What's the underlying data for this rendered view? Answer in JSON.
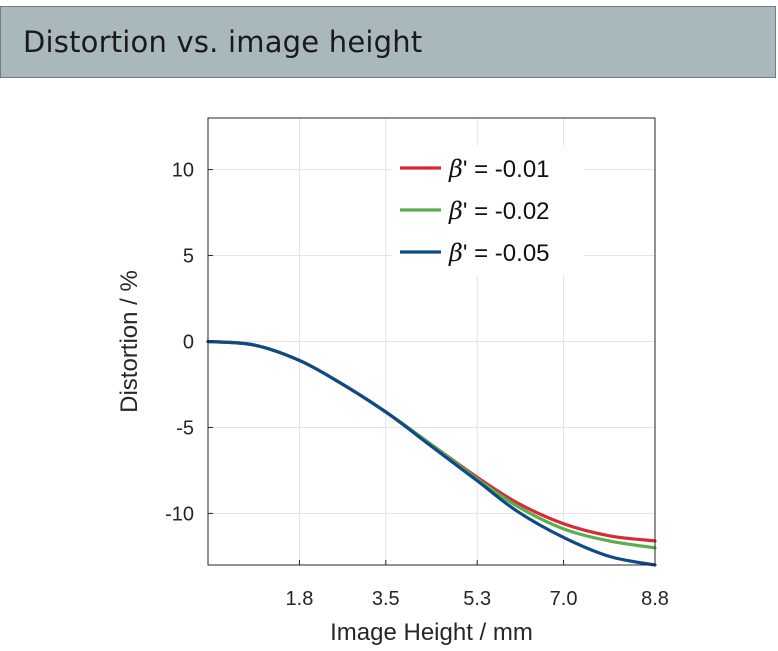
{
  "header": {
    "title": "Distortion vs. image height"
  },
  "chart_data": {
    "type": "line",
    "title": "",
    "xlabel": "Image Height / mm",
    "ylabel": "Distortion / %",
    "xlim": [
      0,
      8.8
    ],
    "ylim": [
      -13,
      13
    ],
    "xticks": [
      1.8,
      3.5,
      5.3,
      7.0,
      8.8
    ],
    "xtick_labels": [
      "1.8",
      "3.5",
      "5.3",
      "7.0",
      "8.8"
    ],
    "yticks": [
      10,
      5,
      0,
      -5,
      -10
    ],
    "ytick_labels": [
      "10",
      "5",
      "0",
      "-5",
      "-10"
    ],
    "grid": true,
    "legend_position": "top-right",
    "series": [
      {
        "name": "β' = -0.01",
        "color": "#d62a36",
        "x": [
          0,
          0.9,
          1.8,
          2.6,
          3.5,
          4.4,
          5.3,
          6.1,
          7.0,
          7.9,
          8.8
        ],
        "y": [
          0,
          -0.2,
          -1.1,
          -2.4,
          -4.1,
          -6.0,
          -7.9,
          -9.4,
          -10.6,
          -11.3,
          -11.6
        ]
      },
      {
        "name": "β' = -0.02",
        "color": "#5aae4e",
        "x": [
          0,
          0.9,
          1.8,
          2.6,
          3.5,
          4.4,
          5.3,
          6.1,
          7.0,
          7.9,
          8.8
        ],
        "y": [
          0,
          -0.2,
          -1.1,
          -2.4,
          -4.1,
          -6.0,
          -8.0,
          -9.6,
          -10.9,
          -11.6,
          -12.0
        ]
      },
      {
        "name": "β' = -0.05",
        "color": "#0d4a87",
        "x": [
          0,
          0.9,
          1.8,
          2.6,
          3.5,
          4.4,
          5.3,
          6.1,
          7.0,
          7.9,
          8.8
        ],
        "y": [
          0,
          -0.2,
          -1.1,
          -2.4,
          -4.1,
          -6.1,
          -8.1,
          -9.9,
          -11.4,
          -12.5,
          -13.3
        ]
      }
    ]
  }
}
